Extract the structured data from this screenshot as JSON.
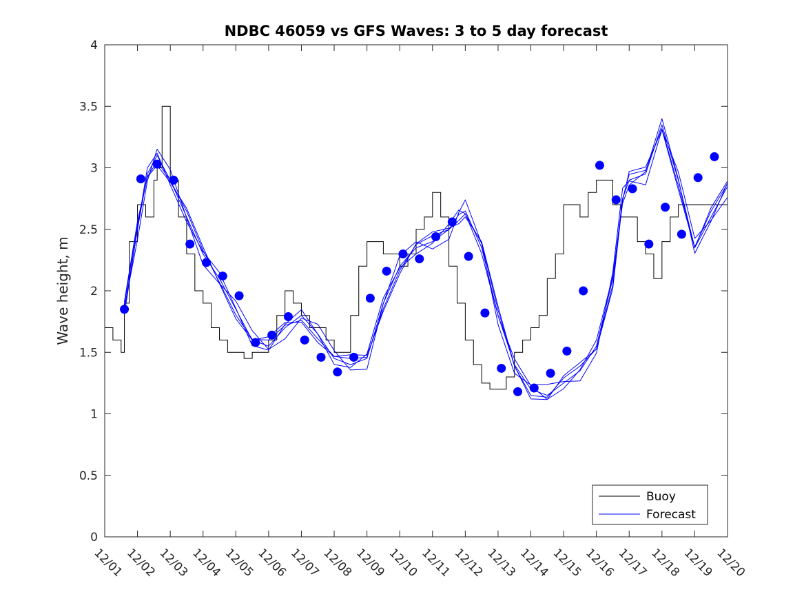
{
  "chart_data": {
    "type": "line",
    "title": "NDBC 46059 vs GFS Waves: 3 to 5 day forecast",
    "xlabel": "",
    "ylabel": "Wave height, m",
    "xlim": [
      0,
      19
    ],
    "ylim": [
      0,
      4
    ],
    "yticks": [
      0,
      0.5,
      1,
      1.5,
      2,
      2.5,
      3,
      3.5,
      4
    ],
    "ytick_labels": [
      "0",
      "0.5",
      "1",
      "1.5",
      "2",
      "2.5",
      "3",
      "3.5",
      "4"
    ],
    "xticks": [
      0,
      1,
      2,
      3,
      4,
      5,
      6,
      7,
      8,
      9,
      10,
      11,
      12,
      13,
      14,
      15,
      16,
      17,
      18,
      19
    ],
    "xtick_labels": [
      "12/01",
      "12/02",
      "12/03",
      "12/04",
      "12/05",
      "12/06",
      "12/07",
      "12/08",
      "12/09",
      "12/10",
      "12/11",
      "12/12",
      "12/13",
      "12/14",
      "12/15",
      "12/16",
      "12/17",
      "12/18",
      "12/19",
      "12/20"
    ],
    "x_units": "days since 12/01 00:00",
    "legend": {
      "position": "bottom-right",
      "entries": [
        "Buoy",
        "Forecast"
      ]
    },
    "colors": {
      "buoy": "#000000",
      "forecast": "#0000ff",
      "markers": "#0000ff"
    },
    "series": [
      {
        "name": "Buoy",
        "color": "#000000",
        "x": [
          0.0,
          0.25,
          0.5,
          0.6,
          0.75,
          1.0,
          1.25,
          1.5,
          1.6,
          1.75,
          2.0,
          2.25,
          2.5,
          2.75,
          3.0,
          3.25,
          3.5,
          3.75,
          4.0,
          4.25,
          4.5,
          4.75,
          5.0,
          5.25,
          5.5,
          5.75,
          6.0,
          6.25,
          6.5,
          6.75,
          7.0,
          7.25,
          7.5,
          7.75,
          8.0,
          8.25,
          8.5,
          8.75,
          9.0,
          9.25,
          9.5,
          9.75,
          10.0,
          10.25,
          10.5,
          10.75,
          11.0,
          11.25,
          11.5,
          11.75,
          12.0,
          12.25,
          12.5,
          12.75,
          13.0,
          13.25,
          13.5,
          13.75,
          14.0,
          14.25,
          14.5,
          14.75,
          15.0,
          15.25,
          15.5,
          15.75,
          16.0,
          16.25,
          16.5,
          16.75,
          17.0,
          17.25,
          17.5,
          17.75,
          18.0,
          18.25,
          18.5,
          18.75,
          19.0
        ],
        "y": [
          1.7,
          1.6,
          1.5,
          1.9,
          2.4,
          2.7,
          2.6,
          2.9,
          3.0,
          3.5,
          2.9,
          2.6,
          2.3,
          2.0,
          1.9,
          1.7,
          1.6,
          1.5,
          1.5,
          1.45,
          1.5,
          1.5,
          1.6,
          1.8,
          2.0,
          1.9,
          1.8,
          1.7,
          1.7,
          1.6,
          1.5,
          1.5,
          1.8,
          2.2,
          2.4,
          2.4,
          2.3,
          2.3,
          2.2,
          2.3,
          2.5,
          2.6,
          2.8,
          2.6,
          2.2,
          1.9,
          1.6,
          1.4,
          1.25,
          1.2,
          1.2,
          1.3,
          1.5,
          1.6,
          1.7,
          1.8,
          2.1,
          2.3,
          2.7,
          2.7,
          2.6,
          2.8,
          2.9,
          2.9,
          2.7,
          2.6,
          2.6,
          2.4,
          2.3,
          2.1,
          2.4,
          2.6,
          2.7,
          2.7,
          2.7,
          2.7,
          2.7,
          2.7,
          2.7
        ]
      },
      {
        "name": "Forecast",
        "color": "#0000ff",
        "x": [
          0.6,
          1.0,
          1.3,
          1.6,
          2.0,
          2.5,
          3.0,
          3.5,
          4.0,
          4.5,
          5.0,
          5.5,
          6.0,
          6.5,
          7.0,
          7.5,
          8.0,
          8.5,
          9.0,
          9.5,
          10.0,
          10.5,
          10.8,
          11.0,
          11.5,
          12.0,
          12.5,
          13.0,
          13.5,
          14.0,
          14.5,
          15.0,
          15.5,
          15.8,
          16.0,
          16.5,
          17.0,
          17.5,
          18.0,
          18.5,
          19.0
        ],
        "y": [
          1.85,
          2.5,
          2.95,
          3.1,
          2.9,
          2.6,
          2.3,
          2.1,
          1.85,
          1.6,
          1.55,
          1.7,
          1.8,
          1.65,
          1.45,
          1.4,
          1.45,
          1.9,
          2.2,
          2.35,
          2.4,
          2.5,
          2.62,
          2.65,
          2.35,
          1.8,
          1.4,
          1.2,
          1.15,
          1.25,
          1.35,
          1.55,
          2.1,
          2.75,
          2.9,
          2.95,
          3.35,
          2.9,
          2.35,
          2.6,
          2.85
        ]
      },
      {
        "name": "Forecast markers",
        "color": "#0000ff",
        "x": [
          0.6,
          1.1,
          1.6,
          2.1,
          2.6,
          3.1,
          3.6,
          4.1,
          4.6,
          5.1,
          5.6,
          6.1,
          6.6,
          7.1,
          7.6,
          8.1,
          8.6,
          9.1,
          9.6,
          10.1,
          10.6,
          11.1,
          11.6,
          12.1,
          12.6,
          13.1,
          13.6,
          14.1,
          14.6,
          15.1,
          15.6,
          16.1,
          16.6,
          17.1,
          17.6,
          18.1,
          18.6
        ],
        "y": [
          1.85,
          2.91,
          3.03,
          2.9,
          2.38,
          2.23,
          2.12,
          1.96,
          1.58,
          1.64,
          1.79,
          1.6,
          1.46,
          1.34,
          1.46,
          1.94,
          2.16,
          2.3,
          2.26,
          2.44,
          2.56,
          2.28,
          1.82,
          1.37,
          1.18,
          1.21,
          1.33,
          1.51,
          2.0,
          3.02,
          2.74,
          2.83,
          2.38,
          2.68,
          2.46,
          2.92,
          3.09
        ]
      }
    ]
  }
}
